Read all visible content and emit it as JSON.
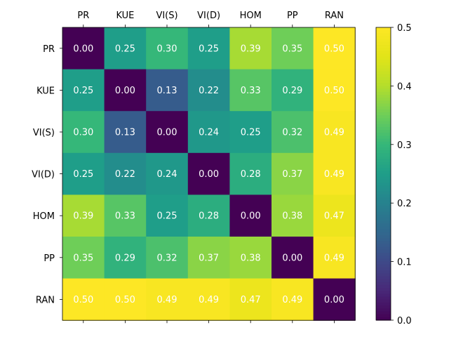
{
  "chart_data": {
    "type": "heatmap",
    "title": "",
    "xlabel": "",
    "ylabel": "",
    "x_categories": [
      "PR",
      "KUE",
      "VI(S)",
      "VI(D)",
      "HOM",
      "PP",
      "RAN"
    ],
    "y_categories": [
      "PR",
      "KUE",
      "VI(S)",
      "VI(D)",
      "HOM",
      "PP",
      "RAN"
    ],
    "x_tick_position": "top",
    "values": [
      [
        0.0,
        0.25,
        0.3,
        0.25,
        0.39,
        0.35,
        0.5
      ],
      [
        0.25,
        0.0,
        0.13,
        0.22,
        0.33,
        0.29,
        0.5
      ],
      [
        0.3,
        0.13,
        0.0,
        0.24,
        0.25,
        0.32,
        0.49
      ],
      [
        0.25,
        0.22,
        0.24,
        0.0,
        0.28,
        0.37,
        0.49
      ],
      [
        0.39,
        0.33,
        0.25,
        0.28,
        0.0,
        0.38,
        0.47
      ],
      [
        0.35,
        0.29,
        0.32,
        0.37,
        0.38,
        0.0,
        0.49
      ],
      [
        0.5,
        0.5,
        0.49,
        0.49,
        0.47,
        0.49,
        0.0
      ]
    ],
    "value_format": "2 decimals",
    "colormap": "viridis",
    "colorbar": {
      "range": [
        0.0,
        0.5
      ],
      "ticks": [
        0.0,
        0.1,
        0.2,
        0.3,
        0.4,
        0.5
      ],
      "tick_labels": [
        "0.0",
        "0.1",
        "0.2",
        "0.3",
        "0.4",
        "0.5"
      ],
      "placement": "right"
    },
    "grid": false
  }
}
